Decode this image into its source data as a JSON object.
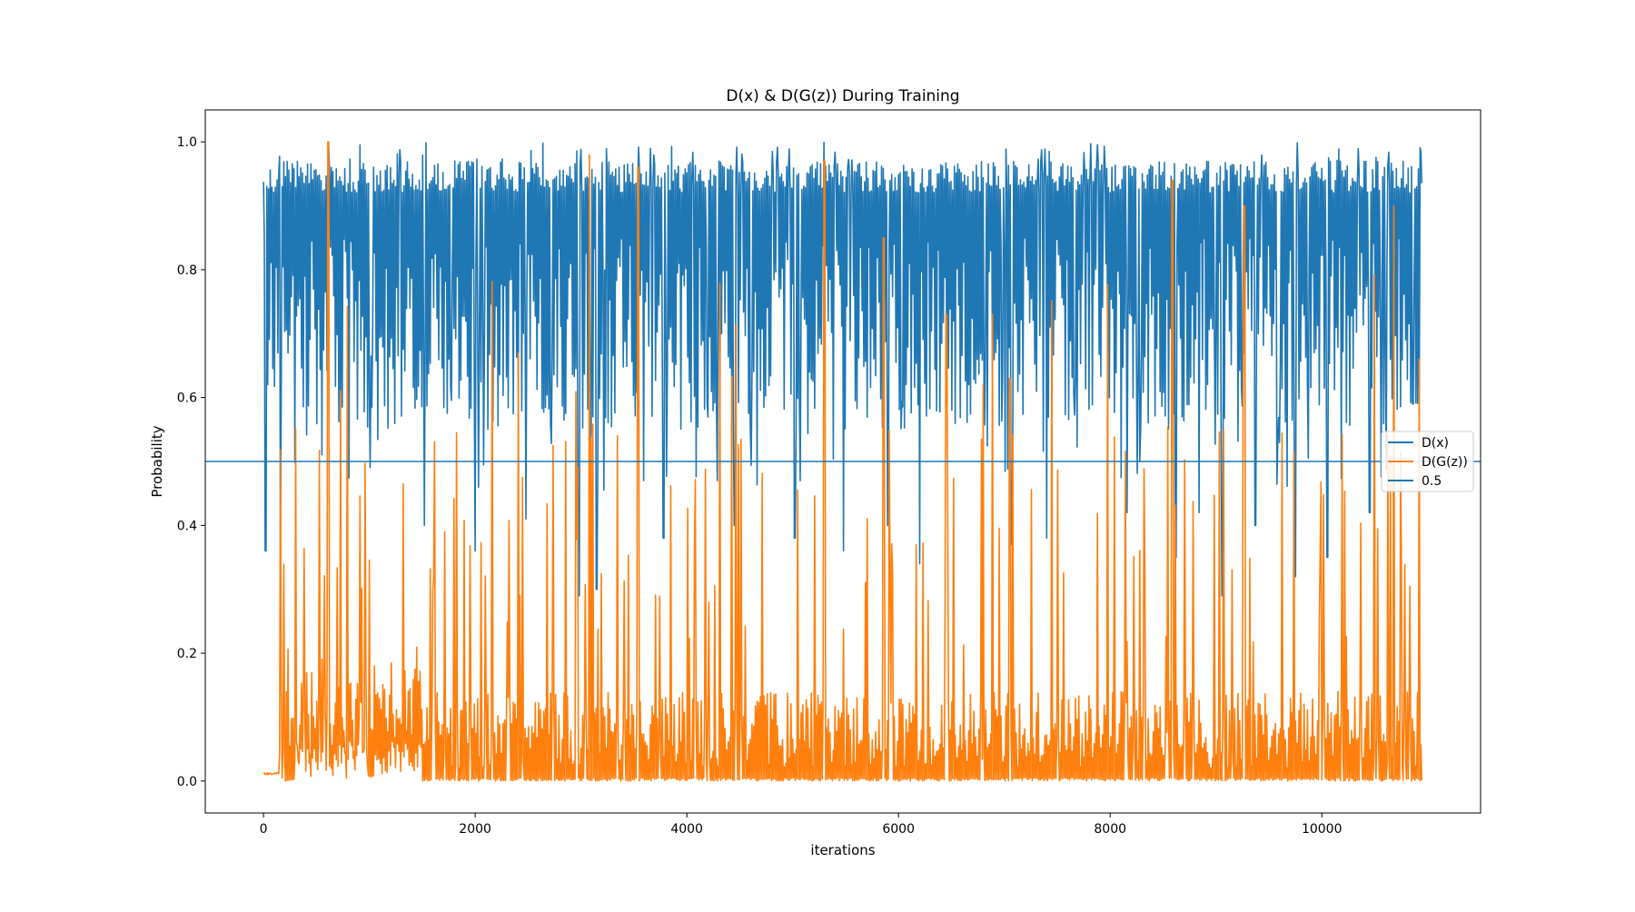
{
  "chart_data": {
    "type": "line",
    "title": "D(x) & D(G(z)) During Training",
    "xlabel": "iterations",
    "ylabel": "Probability",
    "xlim": [
      -550,
      11500
    ],
    "ylim": [
      -0.05,
      1.05
    ],
    "xticks": [
      0,
      2000,
      4000,
      6000,
      8000,
      10000
    ],
    "yticks": [
      0.0,
      0.2,
      0.4,
      0.6,
      0.8,
      1.0
    ],
    "xtick_labels": [
      "0",
      "2000",
      "4000",
      "6000",
      "8000",
      "10000"
    ],
    "ytick_labels": [
      "0.0",
      "0.2",
      "0.4",
      "0.6",
      "0.8",
      "1.0"
    ],
    "legend_position": "center-right",
    "grid": false,
    "series": [
      {
        "name": "D(x)",
        "color": "#1f77b4",
        "x_range": [
          0,
          10950
        ],
        "typical_low": 0.55,
        "typical_high": 0.97,
        "min_value": 0.29,
        "max_value": 1.0,
        "deep_dips": [
          [
            20,
            0.36
          ],
          [
            160,
            0.35
          ],
          [
            1520,
            0.4
          ],
          [
            2000,
            0.36
          ],
          [
            2480,
            0.41
          ],
          [
            2980,
            0.29
          ],
          [
            3150,
            0.3
          ],
          [
            3780,
            0.38
          ],
          [
            4450,
            0.4
          ],
          [
            5020,
            0.38
          ],
          [
            5480,
            0.36
          ],
          [
            5900,
            0.4
          ],
          [
            6200,
            0.34
          ],
          [
            7070,
            0.37
          ],
          [
            7400,
            0.38
          ],
          [
            8160,
            0.42
          ],
          [
            8620,
            0.35
          ],
          [
            8840,
            0.42
          ],
          [
            9060,
            0.29
          ],
          [
            9370,
            0.4
          ],
          [
            9750,
            0.32
          ],
          [
            10050,
            0.35
          ],
          [
            10450,
            0.42
          ],
          [
            10860,
            0.59
          ]
        ]
      },
      {
        "name": "D(G(z))",
        "color": "#ff7f0e",
        "x_range": [
          0,
          10950
        ],
        "initial_flat": [
          [
            0,
            0.01
          ],
          [
            150,
            0.01
          ]
        ],
        "typical_low": 0.0,
        "typical_high": 0.1,
        "min_value": 0.0,
        "max_value": 1.0,
        "major_peaks": [
          [
            610,
            1.0
          ],
          [
            3080,
            0.98
          ],
          [
            3540,
            0.96
          ],
          [
            5300,
            0.97
          ],
          [
            5860,
            0.85
          ],
          [
            8590,
            0.94
          ],
          [
            9270,
            0.9
          ],
          [
            6450,
            0.73
          ],
          [
            6800,
            0.62
          ],
          [
            7050,
            0.63
          ],
          [
            10680,
            0.9
          ],
          [
            10920,
            0.66
          ]
        ]
      },
      {
        "name": "0.5",
        "color": "#1f77b4",
        "y": 0.5,
        "kind": "hline"
      }
    ]
  }
}
